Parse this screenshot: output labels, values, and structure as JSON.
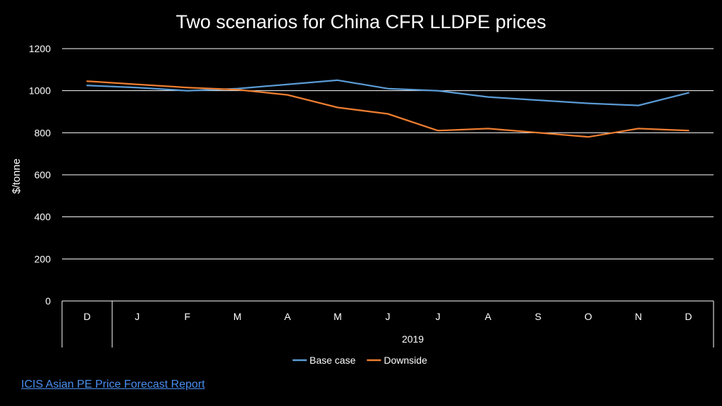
{
  "colors": {
    "background": "#000000",
    "base_case": "#5b9bd5",
    "downside": "#ed7d31",
    "grid": "#ffffff",
    "link": "#4a8ff0"
  },
  "source_link": "ICIS Asian PE Price Forecast Report",
  "chart_data": {
    "type": "line",
    "title": "Two scenarios for China CFR LLDPE prices",
    "xlabel": "",
    "ylabel": "$/tonne",
    "ylim": [
      0,
      1200
    ],
    "yticks": [
      0,
      200,
      400,
      600,
      800,
      1000,
      1200
    ],
    "grid": true,
    "legend_position": "bottom",
    "categories": [
      "D",
      "J",
      "F",
      "M",
      "A",
      "M",
      "J",
      "J",
      "A",
      "S",
      "O",
      "N",
      "D"
    ],
    "category_groups": [
      {
        "label": "",
        "span": 1
      },
      {
        "label": "2019",
        "span": 12
      }
    ],
    "series": [
      {
        "name": "Base case",
        "color": "#5b9bd5",
        "values": [
          1025,
          1015,
          1000,
          1010,
          1030,
          1050,
          1010,
          1000,
          970,
          955,
          940,
          930,
          990
        ]
      },
      {
        "name": "Downside",
        "color": "#ed7d31",
        "values": [
          1045,
          1030,
          1015,
          1005,
          980,
          920,
          890,
          810,
          820,
          800,
          780,
          820,
          810
        ]
      }
    ]
  }
}
